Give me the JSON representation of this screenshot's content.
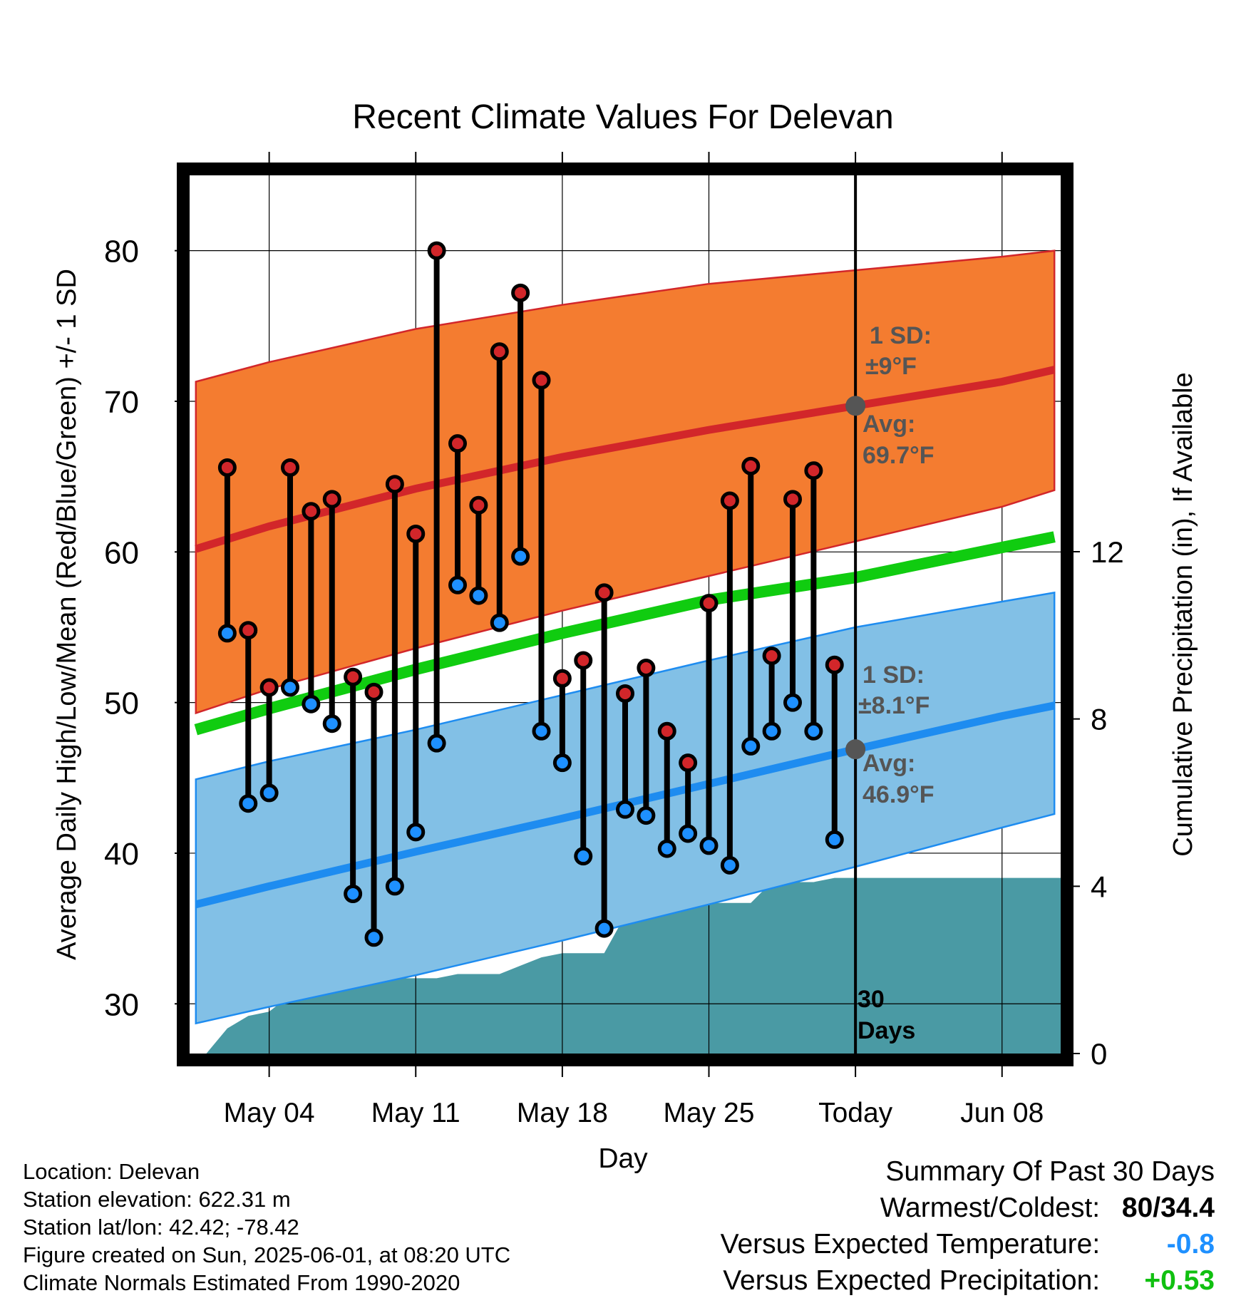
{
  "chart_data": {
    "type": "range",
    "title": "Recent Climate Values For Delevan",
    "xlabel": "Day",
    "ylabel_left": "Average Daily High/Low/Mean (Red/Blue/Green) +/- 1 SD",
    "ylabel_right": "Cumulative Precipitation (in), If Available",
    "x_ticks": [
      "May 04",
      "May 11",
      "May 18",
      "May 25",
      "Today",
      "Jun 08"
    ],
    "y_ticks_left": [
      "30",
      "40",
      "50",
      "60",
      "70",
      "80"
    ],
    "y_ticks_right": [
      "0",
      "4",
      "8",
      "12"
    ],
    "ylim_left": [
      26.7,
      85
    ],
    "ylim_right": [
      0,
      21
    ],
    "xlim_days": [
      -31.8,
      9.8
    ],
    "grid": true,
    "normals": {
      "days": [
        -31.5,
        -28,
        -21,
        -14,
        -7,
        0,
        7,
        9.5
      ],
      "avg_high": [
        60.2,
        61.7,
        64.2,
        66.3,
        68.1,
        69.7,
        71.3,
        72.1
      ],
      "high_upper": [
        71.3,
        72.6,
        74.8,
        76.4,
        77.8,
        78.7,
        79.6,
        80.0
      ],
      "high_lower": [
        49.3,
        50.9,
        53.6,
        56.1,
        58.4,
        60.7,
        63.0,
        64.1
      ],
      "avg_mean": [
        48.2,
        49.6,
        52.2,
        54.6,
        56.8,
        58.3,
        60.3,
        61.0
      ],
      "avg_low": [
        36.6,
        37.8,
        40.1,
        42.3,
        44.6,
        46.9,
        49.1,
        49.8
      ],
      "low_upper": [
        44.9,
        46.1,
        48.2,
        50.5,
        52.8,
        55.0,
        56.7,
        57.3
      ],
      "low_lower": [
        28.7,
        29.8,
        31.9,
        34.2,
        36.6,
        39.1,
        41.7,
        42.6
      ]
    },
    "series": [
      {
        "name": "High",
        "values": [
          65.6,
          54.8,
          51.0,
          65.6,
          62.7,
          63.5,
          51.7,
          50.7,
          64.5,
          61.2,
          80.0,
          67.2,
          63.1,
          73.3,
          77.2,
          71.4,
          51.6,
          52.8,
          57.3,
          50.6,
          52.3,
          48.1,
          46.0,
          56.6,
          63.4,
          65.7,
          53.1,
          63.5,
          65.4,
          52.5
        ]
      },
      {
        "name": "Low",
        "values": [
          54.6,
          43.3,
          44.0,
          51.0,
          49.9,
          48.6,
          37.3,
          34.4,
          37.8,
          41.4,
          47.3,
          57.8,
          57.1,
          55.3,
          59.7,
          48.1,
          46.0,
          39.8,
          35.0,
          42.9,
          42.5,
          40.3,
          41.3,
          40.5,
          39.2,
          47.1,
          48.1,
          50.0,
          48.1,
          40.9
        ]
      }
    ],
    "days": [
      -30,
      -29,
      -28,
      -27,
      -26,
      -25,
      -24,
      -23,
      -22,
      -21,
      -20,
      -19,
      -18,
      -17,
      -16,
      -15,
      -14,
      -13,
      -12,
      -11,
      -10,
      -9,
      -8,
      -7,
      -6,
      -5,
      -4,
      -3,
      -2,
      -1
    ],
    "precip": {
      "days": [
        -31,
        -30,
        -29,
        -28,
        -27,
        -26,
        -25,
        -24,
        -23,
        -22,
        -21,
        -20,
        -19,
        -18,
        -17,
        -16,
        -15,
        -14,
        -13,
        -12,
        -11,
        -10,
        -9,
        -8,
        -7,
        -6,
        -5,
        -4,
        -3,
        -2,
        -1,
        0,
        9.8
      ],
      "values": [
        0,
        0.6,
        0.9,
        1.0,
        1.4,
        1.8,
        1.8,
        1.8,
        1.8,
        1.8,
        1.8,
        1.8,
        1.9,
        1.9,
        1.9,
        2.1,
        2.3,
        2.4,
        2.4,
        2.4,
        3.3,
        3.5,
        3.5,
        3.6,
        3.6,
        3.6,
        3.6,
        4.1,
        4.1,
        4.1,
        4.2,
        4.2,
        4.2
      ]
    },
    "annotations": {
      "high_sd_label": "1 SD:",
      "high_sd_value": "±9°F",
      "high_avg_label": "Avg:",
      "high_avg_value": "69.7°F",
      "high_avg_marker": 69.7,
      "low_sd_label": "1 SD:",
      "low_sd_value": "±8.1°F",
      "low_avg_label": "Avg:",
      "low_avg_value": "46.9°F",
      "low_avg_marker": 46.9,
      "period_line1": "30",
      "period_line2": "Days"
    },
    "colors": {
      "high_band": "#f47c30",
      "high_line": "#d2262a",
      "high_edge": "#d2262a",
      "low_band": "#82c0e6",
      "low_line": "#1e8cf0",
      "mean_line": "#10cc10",
      "precip_fill": "#4a9aa4",
      "high_dot": "#d2262a",
      "low_dot": "#1e90ff",
      "annotation": "#555555"
    }
  },
  "footer": {
    "location": "Location: Delevan",
    "elevation": "Station elevation: 622.31 m",
    "latlon": "Station lat/lon: 42.42; -78.42",
    "created": "Figure created on Sun, 2025-06-01, at 08:20 UTC",
    "normals": "Climate Normals Estimated From 1990-2020"
  },
  "summary": {
    "title": "Summary Of Past 30 Days",
    "warmest_label": "Warmest/Coldest:",
    "warmest_value": "80/34.4",
    "temp_label": "Versus Expected Temperature:",
    "temp_value": "-0.8",
    "temp_color": "#1e90ff",
    "precip_label": "Versus Expected Precipitation:",
    "precip_value": "+0.53",
    "precip_color": "#10c010"
  }
}
